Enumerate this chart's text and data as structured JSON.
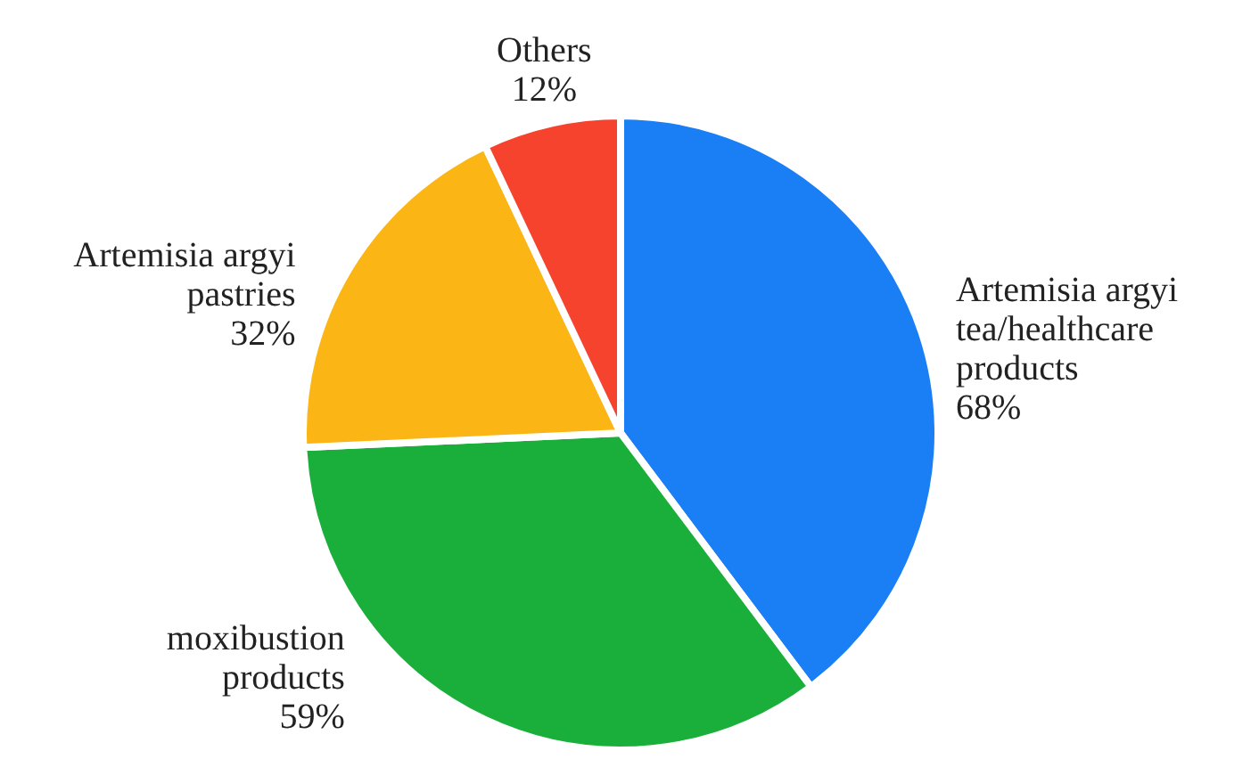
{
  "chart_data": {
    "type": "pie",
    "categories": [
      "Artemisia argyi tea/healthcare products",
      "moxibustion products",
      "Artemisia argyi pastries",
      "Others"
    ],
    "values": [
      68,
      59,
      32,
      12
    ],
    "colors": [
      "#1a7ff5",
      "#1aaf3a",
      "#fbb615",
      "#f5432e"
    ],
    "value_labels": [
      "68%",
      "59%",
      "32%",
      "12%"
    ]
  }
}
